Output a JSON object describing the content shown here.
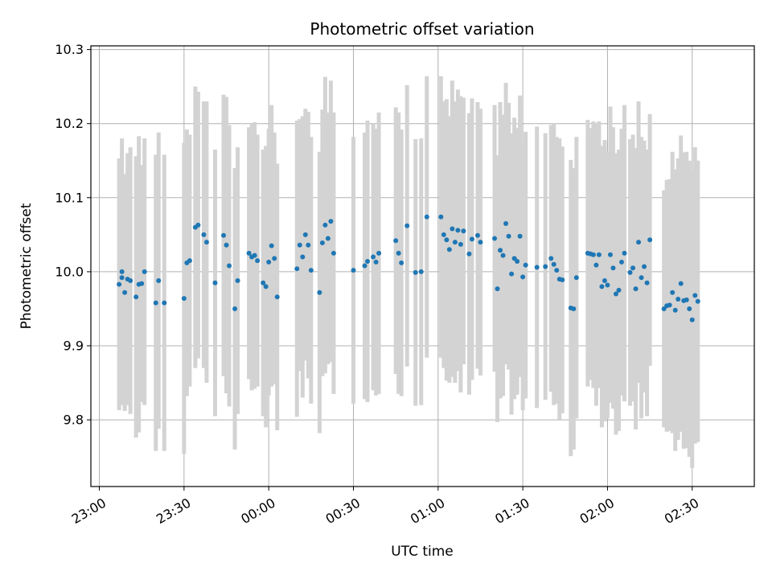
{
  "chart_data": {
    "type": "scatter",
    "title": "Photometric offset variation",
    "xlabel": "UTC time",
    "ylabel": "Photometric offset",
    "x_ticks": [
      "23:00",
      "23:30",
      "00:00",
      "00:30",
      "01:00",
      "01:30",
      "02:00",
      "02:30"
    ],
    "y_ticks": [
      "9.8",
      "9.9",
      "10.0",
      "10.1",
      "10.2",
      "10.3"
    ],
    "x_range_minutes_since_23_00": [
      -3,
      232
    ],
    "ylim": [
      9.71,
      10.305
    ],
    "grid": true,
    "legend": "none",
    "colors": {
      "marker": "#1f77b4",
      "errorbar": "#d3d3d3",
      "grid": "#b0b0b0"
    },
    "series": [
      {
        "x": [
          "23:07",
          "23:08",
          "23:08",
          "23:09",
          "23:10",
          "23:11",
          "23:13",
          "23:14",
          "23:15",
          "23:16",
          "23:20",
          "23:21",
          "23:23",
          "23:30",
          "23:31",
          "23:32",
          "23:34",
          "23:35",
          "23:37",
          "23:38",
          "23:41",
          "23:44",
          "23:45",
          "23:46",
          "23:48",
          "23:49",
          "23:53",
          "23:54",
          "23:55",
          "23:56",
          "23:58",
          "23:59",
          "00:00",
          "00:01",
          "00:02",
          "00:03",
          "00:10",
          "00:11",
          "00:12",
          "00:13",
          "00:14",
          "00:15",
          "00:18",
          "00:19",
          "00:20",
          "00:21",
          "00:22",
          "00:23",
          "00:30",
          "00:34",
          "00:35",
          "00:37",
          "00:38",
          "00:39",
          "00:45",
          "00:46",
          "00:47",
          "00:49",
          "00:52",
          "00:54",
          "00:56",
          "01:01",
          "01:02",
          "01:03",
          "01:04",
          "01:05",
          "01:06",
          "01:07",
          "01:08",
          "01:09",
          "01:11",
          "01:12",
          "01:14",
          "01:15",
          "01:20",
          "01:21",
          "01:22",
          "01:23",
          "01:24",
          "01:25",
          "01:26",
          "01:27",
          "01:28",
          "01:29",
          "01:30",
          "01:31",
          "01:35",
          "01:38",
          "01:40",
          "01:41",
          "01:42",
          "01:43",
          "01:44",
          "01:47",
          "01:48",
          "01:49",
          "01:53",
          "01:54",
          "01:55",
          "01:56",
          "01:57",
          "01:58",
          "01:59",
          "02:00",
          "02:01",
          "02:02",
          "02:03",
          "02:04",
          "02:05",
          "02:06",
          "02:08",
          "02:09",
          "02:10",
          "02:11",
          "02:12",
          "02:13",
          "02:14",
          "02:15",
          "02:20",
          "02:21",
          "02:22",
          "02:23",
          "02:24",
          "02:25",
          "02:26",
          "02:27",
          "02:28",
          "02:29",
          "02:30",
          "02:31",
          "02:32"
        ],
        "y": [
          9.983,
          10.0,
          9.992,
          9.972,
          9.99,
          9.988,
          9.966,
          9.983,
          9.984,
          10.0,
          9.958,
          9.988,
          9.958,
          9.964,
          10.012,
          10.015,
          10.06,
          10.063,
          10.05,
          10.04,
          9.985,
          10.049,
          10.036,
          10.008,
          9.95,
          9.988,
          10.025,
          10.02,
          10.022,
          10.015,
          9.985,
          9.98,
          10.013,
          10.035,
          10.018,
          9.966,
          10.004,
          10.036,
          10.02,
          10.05,
          10.036,
          10.002,
          9.972,
          10.039,
          10.063,
          10.045,
          10.068,
          10.025,
          10.002,
          10.008,
          10.014,
          10.02,
          10.013,
          10.025,
          10.042,
          10.025,
          10.012,
          10.062,
          9.999,
          10.0,
          10.074,
          10.074,
          10.05,
          10.043,
          10.03,
          10.058,
          10.04,
          10.056,
          10.037,
          10.055,
          10.024,
          10.044,
          10.049,
          10.04,
          10.045,
          9.977,
          10.029,
          10.022,
          10.065,
          10.048,
          9.997,
          10.018,
          10.014,
          10.048,
          9.993,
          10.009,
          10.006,
          10.007,
          10.018,
          10.01,
          10.002,
          9.99,
          9.989,
          9.951,
          9.95,
          9.992,
          10.025,
          10.024,
          10.023,
          10.009,
          10.023,
          9.98,
          9.988,
          9.982,
          10.023,
          10.005,
          9.97,
          9.975,
          10.013,
          10.025,
          9.999,
          10.005,
          9.977,
          10.04,
          9.992,
          10.007,
          9.985,
          10.043,
          9.95,
          9.954,
          9.955,
          9.972,
          9.948,
          9.963,
          9.984,
          9.961,
          9.962,
          9.95,
          9.935,
          9.968,
          9.96
        ],
        "err": [
          0.17,
          0.18,
          0.17,
          0.16,
          0.17,
          0.18,
          0.19,
          0.2,
          0.16,
          0.18,
          0.2,
          0.2,
          0.2,
          0.21,
          0.18,
          0.17,
          0.19,
          0.18,
          0.18,
          0.19,
          0.18,
          0.19,
          0.2,
          0.19,
          0.19,
          0.18,
          0.17,
          0.18,
          0.18,
          0.17,
          0.18,
          0.19,
          0.18,
          0.19,
          0.17,
          0.18,
          0.2,
          0.17,
          0.19,
          0.17,
          0.18,
          0.18,
          0.19,
          0.18,
          0.2,
          0.17,
          0.19,
          0.19,
          0.18,
          0.18,
          0.19,
          0.18,
          0.18,
          0.19,
          0.18,
          0.19,
          0.18,
          0.19,
          0.18,
          0.18,
          0.19,
          0.19,
          0.18,
          0.19,
          0.18,
          0.2,
          0.19,
          0.19,
          0.2,
          0.18,
          0.19,
          0.19,
          0.18,
          0.18,
          0.18,
          0.18,
          0.2,
          0.19,
          0.19,
          0.18,
          0.19,
          0.19,
          0.18,
          0.19,
          0.18,
          0.18,
          0.19,
          0.18,
          0.18,
          0.19,
          0.18,
          0.19,
          0.18,
          0.2,
          0.19,
          0.19,
          0.18,
          0.17,
          0.18,
          0.19,
          0.18,
          0.19,
          0.19,
          0.18,
          0.2,
          0.19,
          0.19,
          0.19,
          0.18,
          0.2,
          0.18,
          0.18,
          0.19,
          0.19,
          0.19,
          0.17,
          0.18,
          0.17,
          0.16,
          0.17,
          0.17,
          0.19,
          0.19,
          0.19,
          0.2,
          0.2,
          0.2,
          0.2,
          0.2,
          0.2,
          0.19
        ]
      }
    ]
  }
}
